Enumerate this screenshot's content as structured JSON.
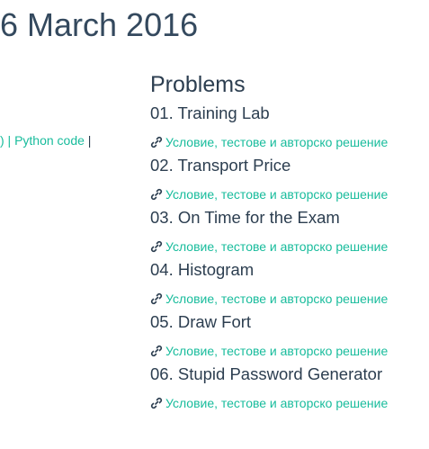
{
  "page": {
    "title": "6 March 2016"
  },
  "left_links": {
    "prefix": ") | ",
    "python_code": "Python code",
    "suffix": " |"
  },
  "problems": {
    "heading": "Problems",
    "link_icon": "link-icon",
    "link_color": "#18bc9c",
    "items": [
      {
        "title": "01. Training Lab",
        "link": "Условие, тестове и авторско решение"
      },
      {
        "title": "02. Transport Price",
        "link": "Условие, тестове и авторско решение"
      },
      {
        "title": "03. On Time for the Exam",
        "link": "Условие, тестове и авторско решение"
      },
      {
        "title": "04. Histogram",
        "link": "Условие, тестове и авторско решение"
      },
      {
        "title": "05. Draw Fort",
        "link": "Условие, тестове и авторско решение"
      },
      {
        "title": "06. Stupid Password Generator",
        "link": "Условие, тестове и авторско решение"
      }
    ]
  }
}
